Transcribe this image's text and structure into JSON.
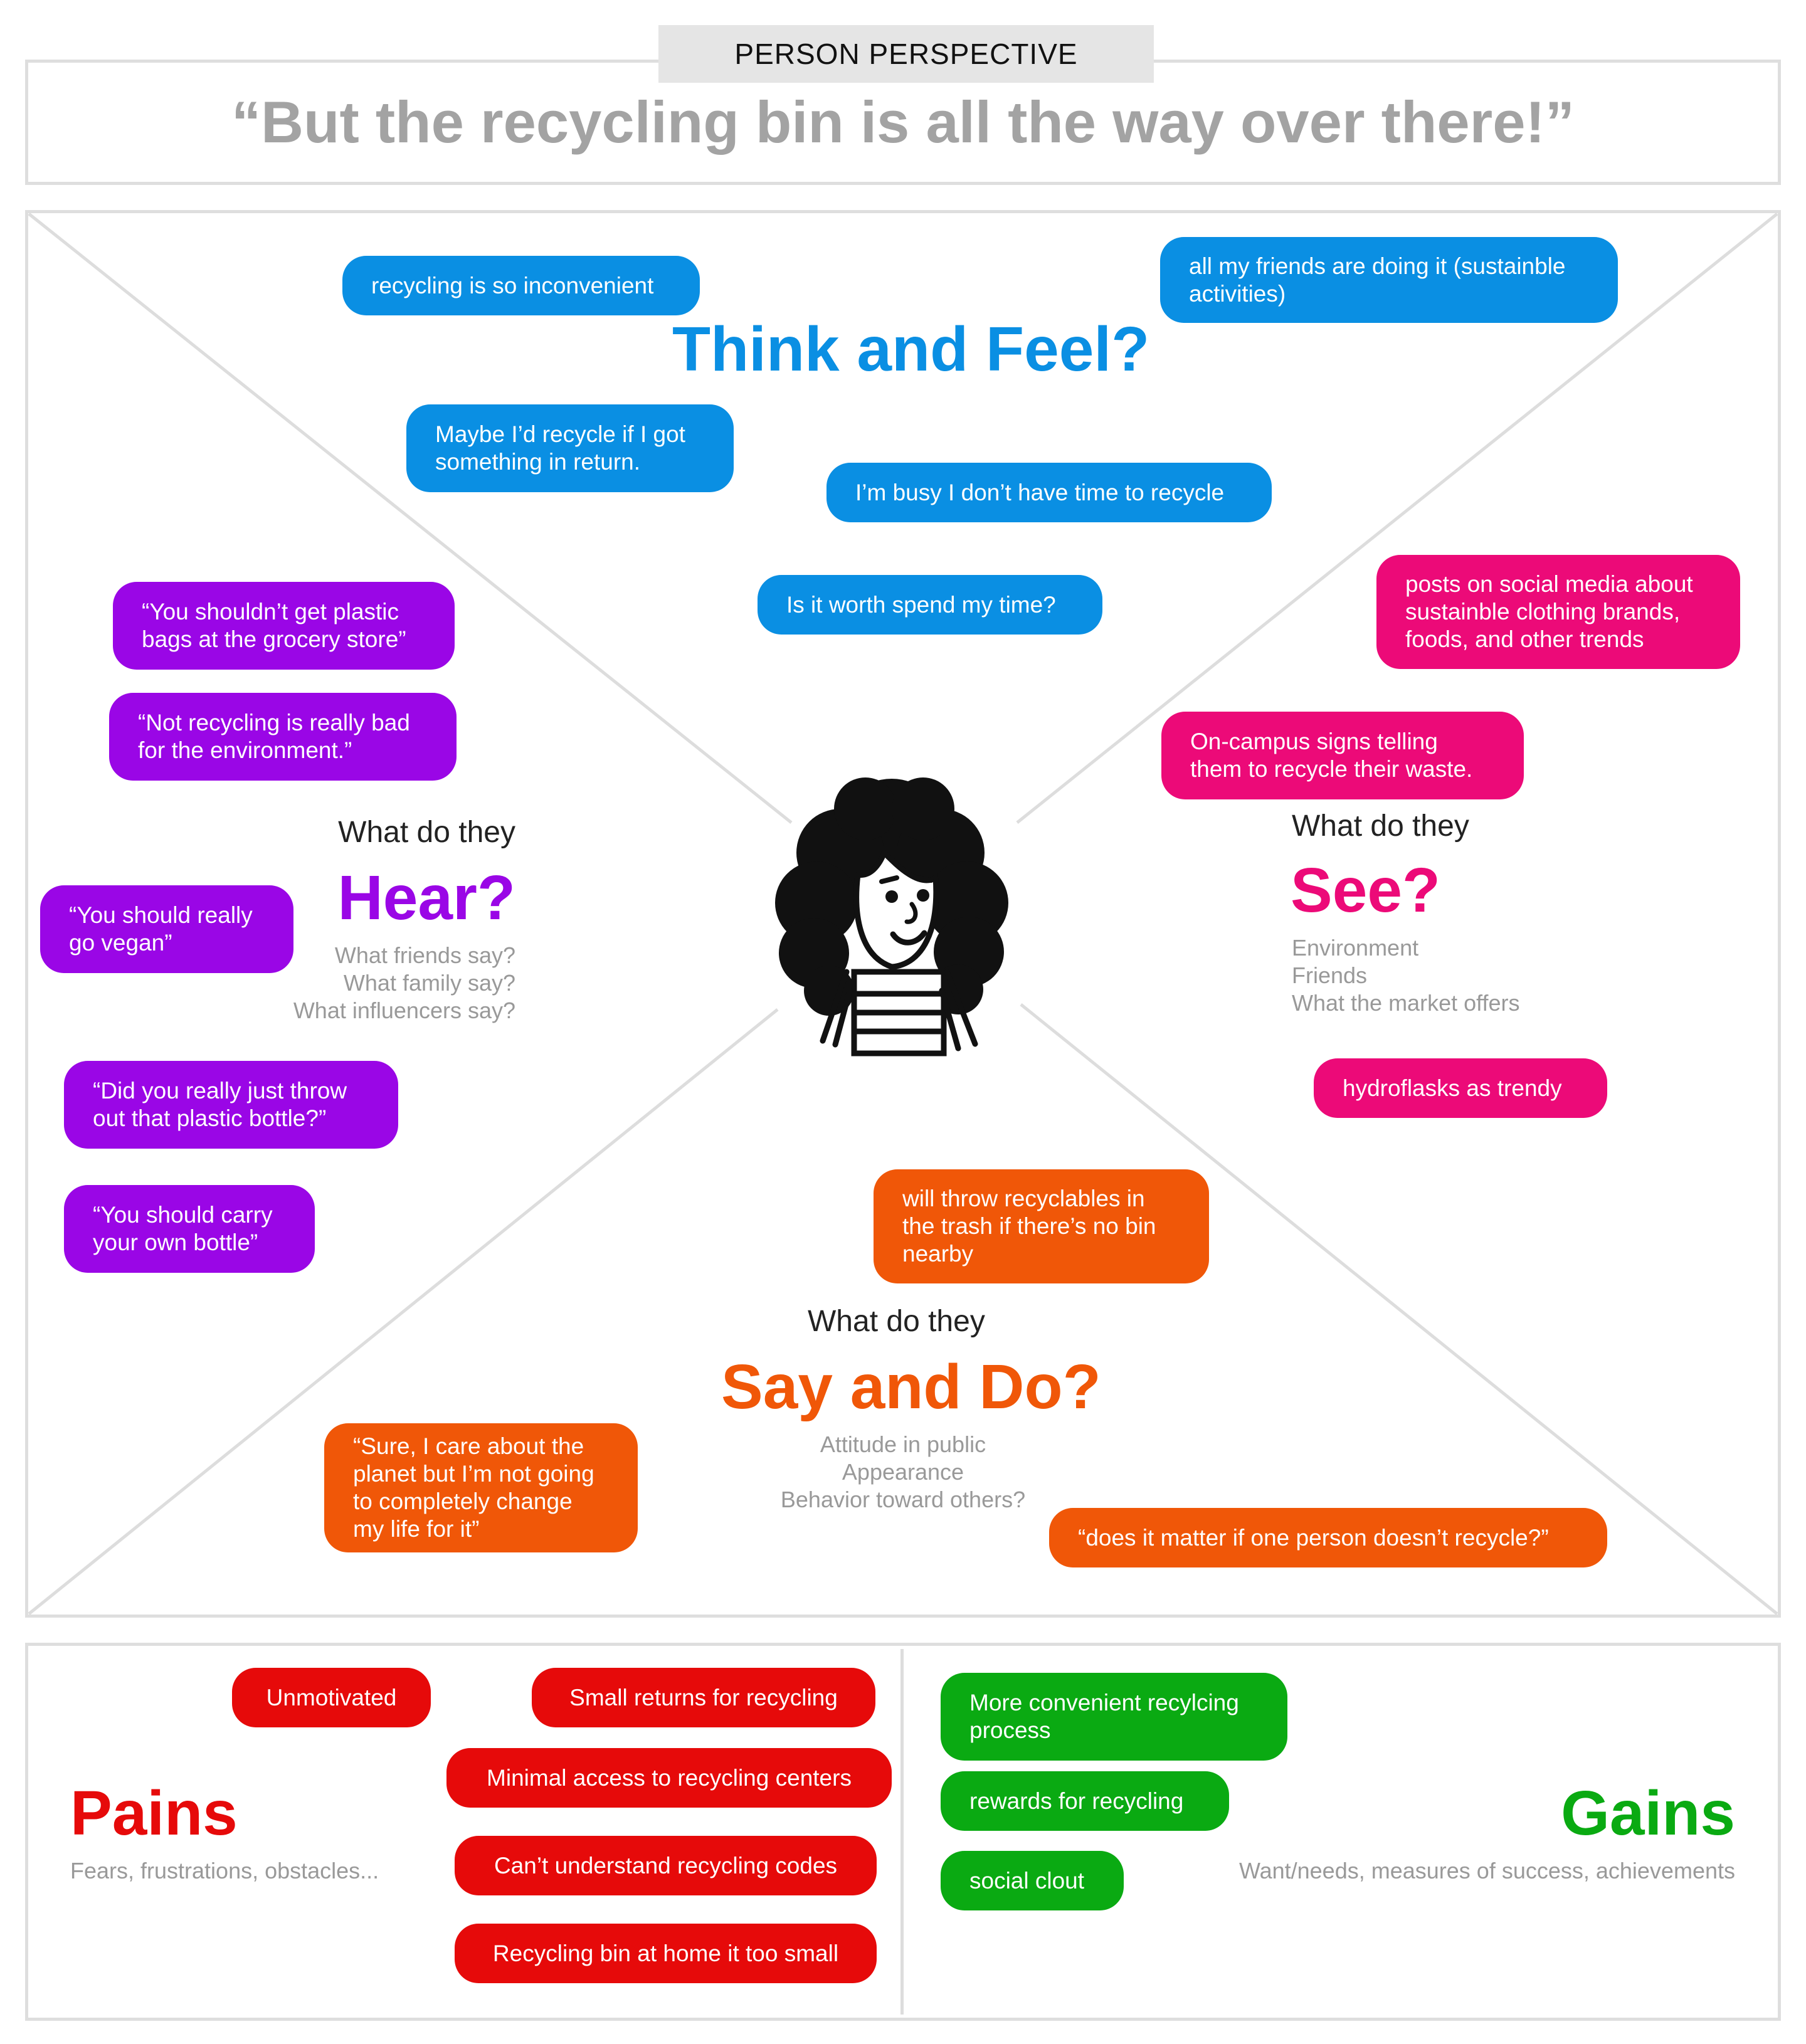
{
  "header": {
    "tab_label": "PERSON PERSPECTIVE",
    "quote": "“But the recycling bin is all the way over there!”"
  },
  "think_feel": {
    "title": "Think and Feel?",
    "color": "#0a8fe3",
    "notes": [
      "recycling is so inconvenient",
      "all my friends are doing it (sustainble activities)",
      "Maybe I’d recycle if I got something in return.",
      "I’m busy I don’t have time to recycle",
      "Is it worth spend my time?"
    ]
  },
  "hear": {
    "pre": "What do they",
    "title": "Hear?",
    "color": "#9a06e6",
    "subs": [
      "What friends say?",
      "What family say?",
      "What influencers say?"
    ],
    "notes": [
      "“You shouldn’t get plastic bags at the grocery store”",
      "“Not recycling is really bad for the environment.”",
      "“You should really go vegan”",
      "“Did you really just throw out that plastic bottle?”",
      "“You should carry your own bottle”"
    ]
  },
  "see": {
    "pre": "What do they",
    "title": "See?",
    "color": "#ec0a78",
    "subs": [
      "Environment",
      "Friends",
      "What the market offers"
    ],
    "notes": [
      "posts on social media about sustainble clothing brands, foods, and other trends",
      "On-campus signs telling them to recycle their waste.",
      "hydroflasks as trendy"
    ]
  },
  "say_do": {
    "pre": "What do they",
    "title": "Say and Do?",
    "color": "#f05708",
    "subs": [
      "Attitude in public",
      "Appearance",
      "Behavior toward others?"
    ],
    "notes": [
      "will throw recyclables in the trash if there’s no bin nearby",
      "“Sure, I care about the planet but I’m not going to completely change my life for it”",
      "“does it matter if one person doesn’t recycle?”"
    ]
  },
  "pains": {
    "title": "Pains",
    "color": "#e60a0a",
    "sub": "Fears, frustrations, obstacles...",
    "notes": [
      "Unmotivated",
      "Small returns for recycling",
      "Minimal access to recycling centers",
      "Can’t understand recycling codes",
      "Recycling bin at home it too small"
    ]
  },
  "gains": {
    "title": "Gains",
    "color": "#0aaa12",
    "sub": "Want/needs, measures of success, achievements",
    "notes": [
      "More convenient recylcing process",
      "rewards for recycling",
      "social clout"
    ]
  }
}
